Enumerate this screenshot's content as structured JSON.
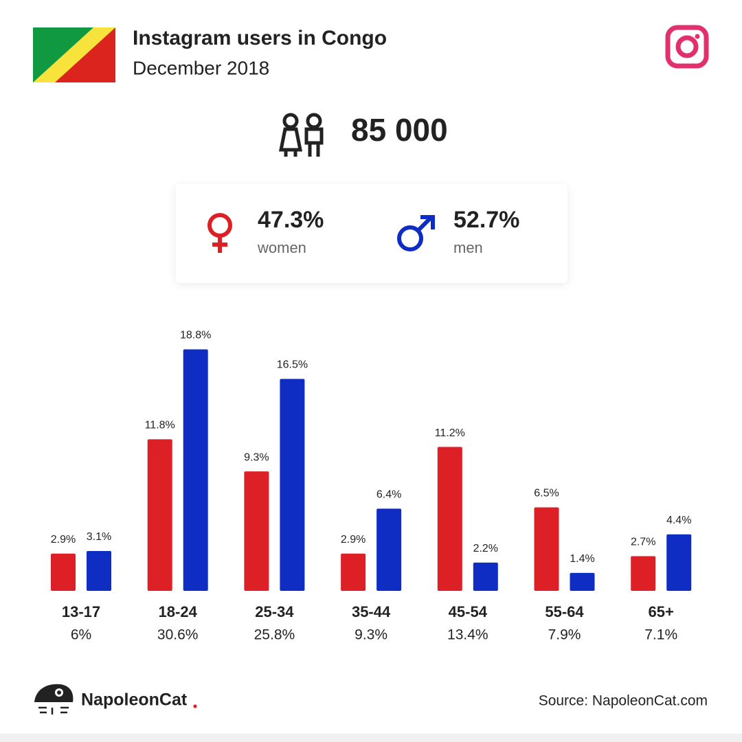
{
  "header": {
    "title": "Instagram users in Congo",
    "subtitle": "December 2018"
  },
  "total_users": {
    "value": 85000,
    "label": "85 000"
  },
  "gender_shares": [
    {
      "value": 47.3,
      "label": "47.3%"
    },
    {
      "value": 52.7,
      "label": "52.7%"
    }
  ],
  "chart_data": {
    "type": "bar",
    "categories": [
      "13-17",
      "18-24",
      "25-34",
      "35-44",
      "45-54",
      "55-64",
      "65+"
    ],
    "category_totals": [
      {
        "value": 6,
        "label": "6%"
      },
      {
        "value": 30.6,
        "label": "30.6%"
      },
      {
        "value": 25.8,
        "label": "25.8%"
      },
      {
        "value": 9.3,
        "label": "9.3%"
      },
      {
        "value": 13.4,
        "label": "13.4%"
      },
      {
        "value": 7.9,
        "label": "7.9%"
      },
      {
        "value": 7.1,
        "label": "7.1%"
      }
    ],
    "series": [
      {
        "name": "women",
        "color": "#dd2026",
        "values": [
          2.9,
          11.8,
          9.3,
          2.9,
          11.2,
          6.5,
          2.7
        ],
        "value_labels": [
          "2.9%",
          "11.8%",
          "9.3%",
          "2.9%",
          "11.2%",
          "6.5%",
          "2.7%"
        ]
      },
      {
        "name": "men",
        "color": "#0f2cc3",
        "values": [
          3.1,
          18.8,
          16.5,
          6.4,
          2.2,
          1.4,
          4.4
        ],
        "value_labels": [
          "3.1%",
          "18.8%",
          "16.5%",
          "6.4%",
          "2.2%",
          "1.4%",
          "4.4%"
        ]
      }
    ]
  },
  "footer": {
    "brand": "NapoleonCat",
    "source": "Source: NapoleonCat.com"
  }
}
